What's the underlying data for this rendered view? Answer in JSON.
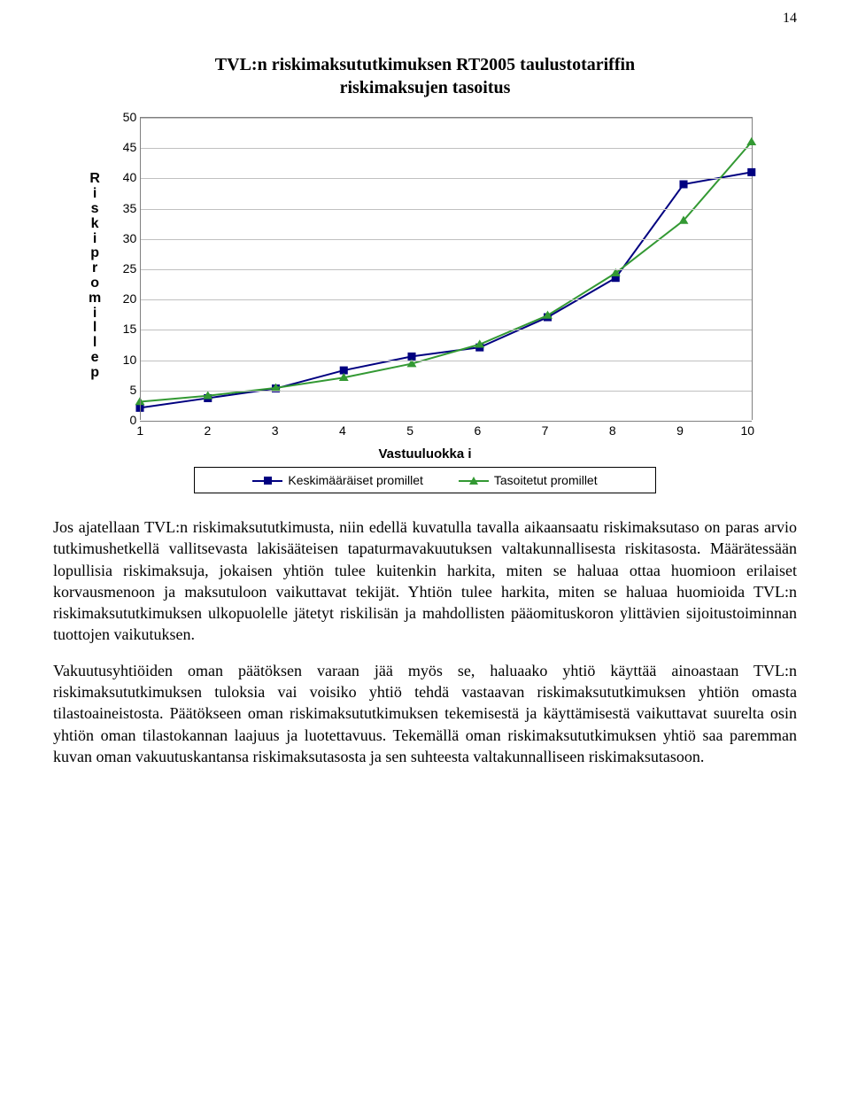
{
  "page_number": "14",
  "chart": {
    "type": "line",
    "title_line1": "TVL:n riskimaksututkimuksen RT2005 taulustotariffin",
    "title_line2": "riskimaksujen tasoitus",
    "title_fontsize": 20,
    "ylabel_chars": [
      "R",
      "i",
      "s",
      "k",
      "i",
      "p",
      "r",
      "o",
      "m",
      "i",
      "l",
      "l",
      "e",
      "p"
    ],
    "xlabel": "Vastuuluokka i",
    "x_values": [
      1,
      2,
      3,
      4,
      5,
      6,
      7,
      8,
      9,
      10
    ],
    "series": [
      {
        "name": "Keskimääräiset promillet",
        "color": "#000080",
        "marker": "square",
        "marker_fill": "#000080",
        "values": [
          2.0,
          3.6,
          5.2,
          8.2,
          10.5,
          12.0,
          17.0,
          23.5,
          39.0,
          41.0
        ]
      },
      {
        "name": "Tasoitetut promillet",
        "color": "#339933",
        "marker": "triangle",
        "marker_fill": "#339933",
        "values": [
          3.0,
          4.0,
          5.3,
          7.0,
          9.3,
          12.5,
          17.3,
          24.3,
          33.0,
          46.0
        ]
      }
    ],
    "ylim": [
      0,
      50
    ],
    "ytick_step": 5,
    "grid_color": "#c0c0c0",
    "axis_color": "#808080",
    "background_color": "#ffffff",
    "marker_size": 9,
    "line_width": 2
  },
  "legend": {
    "items": [
      {
        "label": "Keskimääräiset promillet"
      },
      {
        "label": "Tasoitetut promillet"
      }
    ]
  },
  "paragraphs": [
    "Jos ajatellaan TVL:n riskimaksututkimusta, niin edellä kuvatulla tavalla aikaansaatu riskimaksutaso on paras arvio tutkimushetkellä vallitsevasta lakisääteisen tapaturmavakuutuksen valtakunnallisesta riskitasosta. Määrätessään lopullisia riskimaksuja, jokaisen yhtiön tulee kuitenkin harkita, miten se haluaa ottaa huomioon erilaiset korvausmenoon ja maksutuloon vaikuttavat tekijät. Yhtiön tulee harkita, miten se haluaa huomioida TVL:n riskimaksututkimuksen ulkopuolelle jätetyt riskilisän ja mahdollisten pääomituskoron ylittävien sijoitustoiminnan tuottojen vaikutuksen.",
    "Vakuutusyhtiöiden oman päätöksen varaan jää myös se, haluaako yhtiö käyttää ainoastaan TVL:n riskimaksututkimuksen tuloksia vai voisiko yhtiö tehdä vastaavan riskimaksututkimuksen yhtiön omasta tilastoaineistosta. Päätökseen oman riskimaksututkimuksen tekemisestä ja käyttämisestä vaikuttavat suurelta osin yhtiön oman tilastokannan laajuus ja luotettavuus. Tekemällä oman riskimaksututkimuksen yhtiö saa paremman kuvan oman vakuutuskantansa riskimaksutasosta ja sen suhteesta valtakunnalliseen riskimaksutasoon."
  ]
}
